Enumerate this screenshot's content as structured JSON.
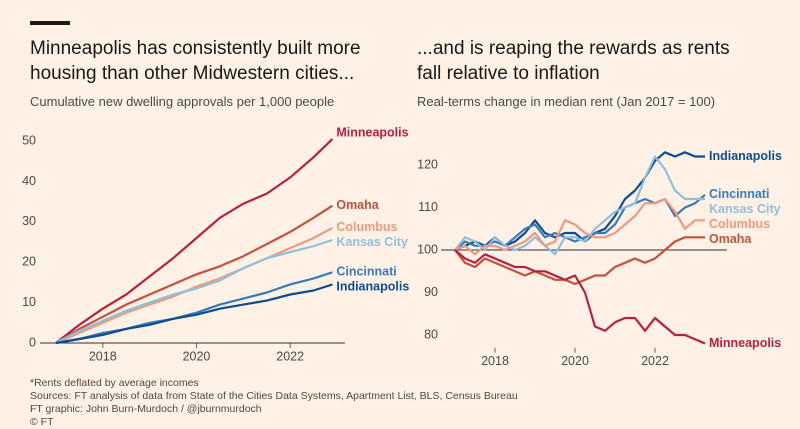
{
  "chart_data": [
    {
      "type": "line",
      "title": "Minneapolis has consistently built more housing than other Midwestern cities...",
      "subtitle": "Cumulative new dwelling approvals per 1,000 people",
      "x": [
        2017,
        2017.5,
        2018,
        2018.5,
        2019,
        2019.5,
        2020,
        2020.5,
        2021,
        2021.5,
        2022,
        2022.5,
        2022.9
      ],
      "xlim": [
        2016.66,
        2023.17
      ],
      "xticks": [
        2018,
        2020,
        2022
      ],
      "ylim": [
        0,
        52
      ],
      "yticks": [
        0,
        10,
        20,
        30,
        40,
        50
      ],
      "baseline": 0,
      "series": [
        {
          "name": "Minneapolis",
          "color": "#b8203f",
          "values": [
            0,
            4.5,
            8.5,
            12,
            16.5,
            21,
            26,
            31,
            34.5,
            37,
            41,
            46,
            50.5
          ]
        },
        {
          "name": "Omaha",
          "color": "#c5503d",
          "values": [
            0,
            3.5,
            6.5,
            9.5,
            12,
            14.5,
            17,
            19,
            21.5,
            24.5,
            27.5,
            31,
            34
          ]
        },
        {
          "name": "Columbus",
          "color": "#eb9a80",
          "values": [
            0,
            2.5,
            5,
            7.5,
            9.5,
            11.5,
            14,
            16,
            18.5,
            21,
            23.5,
            26,
            28.5
          ]
        },
        {
          "name": "Kansas City",
          "color": "#8fc0db",
          "values": [
            0,
            3,
            5.5,
            8,
            10,
            12,
            13.5,
            15.5,
            18.5,
            21,
            22.5,
            24,
            25.5
          ]
        },
        {
          "name": "Cincinnati",
          "color": "#3a7ab8",
          "values": [
            0,
            1,
            2.5,
            3.5,
            5,
            6,
            7.5,
            9.5,
            11,
            12.5,
            14.5,
            16,
            17.5
          ]
        },
        {
          "name": "Indianapolis",
          "color": "#0e4c92",
          "values": [
            0,
            1,
            2,
            3.5,
            4.5,
            6,
            7,
            8.5,
            9.5,
            10.5,
            12,
            13,
            14.5
          ]
        }
      ]
    },
    {
      "type": "line",
      "title": "...and is reaping the rewards as rents fall relative to inflation",
      "subtitle": "Real-terms change in median rent (Jan 2017 = 100)",
      "x": [
        2017,
        2017.25,
        2017.5,
        2017.75,
        2018,
        2018.25,
        2018.5,
        2018.75,
        2019,
        2019.25,
        2019.5,
        2019.75,
        2020,
        2020.25,
        2020.5,
        2020.75,
        2021,
        2021.25,
        2021.5,
        2021.75,
        2022,
        2022.25,
        2022.5,
        2022.75,
        2023,
        2023.25
      ],
      "xlim": [
        2016.65,
        2023.8
      ],
      "xticks": [
        2018,
        2020,
        2022
      ],
      "ylim": [
        77,
        126
      ],
      "yticks": [
        80,
        90,
        100,
        110,
        120
      ],
      "baseline": 100,
      "series": [
        {
          "name": "Indianapolis",
          "color": "#0e4c92",
          "values": [
            100,
            101,
            102,
            101,
            103,
            101,
            102,
            104,
            107,
            104,
            103,
            104,
            104,
            102,
            104,
            105,
            108,
            112,
            114,
            117,
            121,
            123,
            122,
            123,
            122,
            122
          ]
        },
        {
          "name": "Cincinnati",
          "color": "#3a7ab8",
          "values": [
            100,
            102,
            101,
            101,
            102,
            101,
            103,
            105,
            106,
            103,
            104,
            103,
            102,
            103,
            104,
            104,
            106,
            110,
            111,
            112,
            111,
            112,
            108,
            110,
            111,
            113
          ]
        },
        {
          "name": "Kansas City",
          "color": "#8fc0db",
          "values": [
            100,
            103,
            102,
            100,
            103,
            101,
            100,
            101,
            103,
            101,
            99,
            103,
            103,
            102,
            105,
            107,
            109,
            110,
            111,
            117,
            122,
            119,
            114,
            112,
            112,
            112
          ]
        },
        {
          "name": "Columbus",
          "color": "#eb9a80",
          "values": [
            100,
            101,
            99,
            101,
            101,
            100,
            101,
            102,
            104,
            101,
            102,
            107,
            106,
            104,
            103,
            103,
            104,
            106,
            108,
            111,
            111,
            112,
            109,
            105,
            107,
            107
          ]
        },
        {
          "name": "Omaha",
          "color": "#c5503d",
          "values": [
            100,
            97,
            96,
            98,
            97,
            96,
            95,
            94,
            95,
            94,
            93,
            93,
            92,
            93,
            94,
            94,
            96,
            97,
            98,
            97,
            98,
            100,
            102,
            103,
            103,
            103
          ]
        },
        {
          "name": "Minneapolis",
          "color": "#b8203f",
          "values": [
            100,
            98,
            97,
            99,
            98,
            97,
            96,
            96,
            95,
            95,
            94,
            93,
            94,
            90,
            82,
            81,
            83,
            84,
            84,
            81,
            84,
            82,
            80,
            80,
            79,
            78
          ]
        }
      ]
    }
  ],
  "footer": {
    "notes": [
      "*Rents deflated by average incomes",
      "Sources: FT analysis of data from State of the Cities Data Systems, Apartment List, BLS, Census Bureau",
      "FT graphic: John Burn-Murdoch / @jburnmurdoch",
      "© FT"
    ]
  }
}
